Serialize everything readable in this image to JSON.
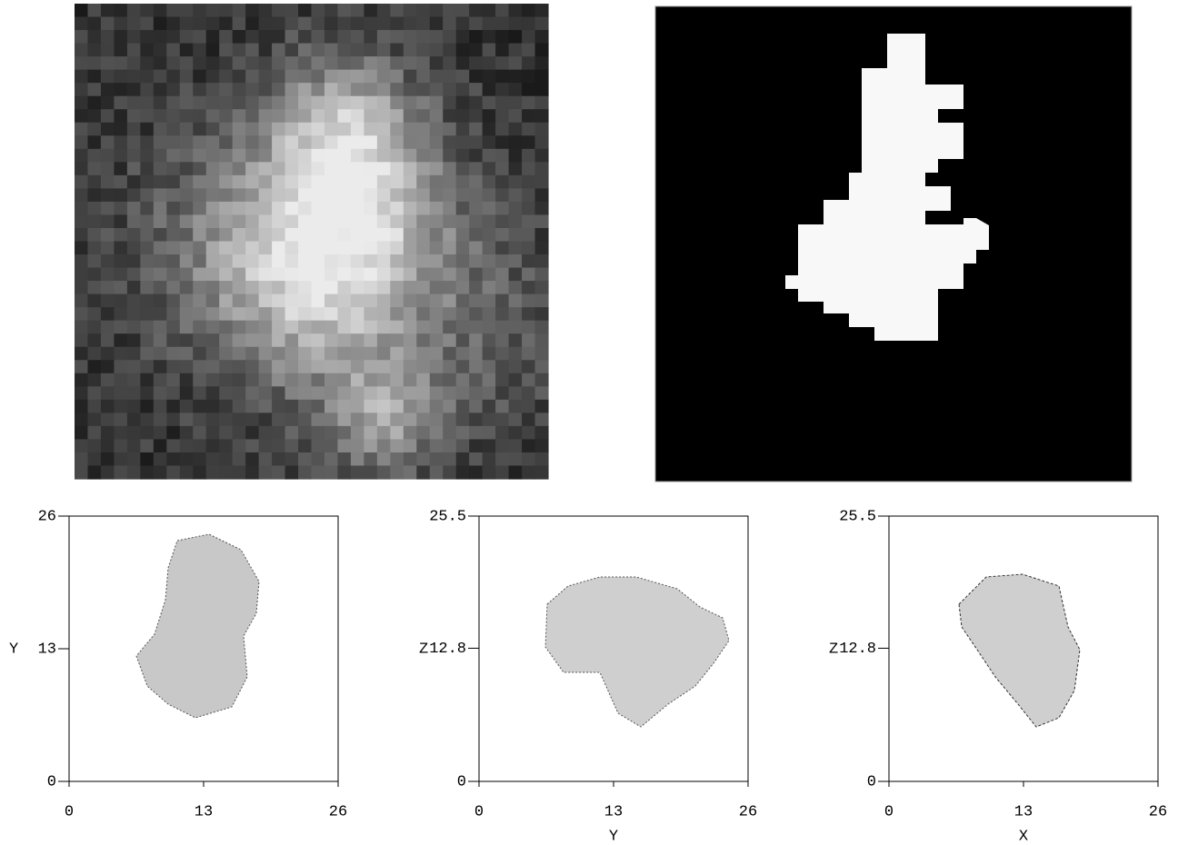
{
  "chart_data": [
    {
      "type": "render",
      "ylabel": "Y",
      "xlim": [
        0,
        26
      ],
      "ylim": [
        0,
        26
      ],
      "xticks": [
        0,
        13,
        26
      ],
      "yticks": [
        0,
        13,
        26
      ]
    },
    {
      "type": "render",
      "xlabel": "Y",
      "ylabel": "Z",
      "xlim": [
        0,
        26
      ],
      "ylim": [
        0,
        25.5
      ],
      "xticks": [
        0,
        13,
        26
      ],
      "yticks": [
        0,
        12.8,
        25.5
      ]
    },
    {
      "type": "render",
      "xlabel": "X",
      "ylabel": "Z",
      "xlim": [
        0,
        26
      ],
      "ylim": [
        0,
        25.5
      ],
      "xticks": [
        0,
        13,
        26
      ],
      "yticks": [
        0,
        12.8,
        25.5
      ]
    }
  ]
}
